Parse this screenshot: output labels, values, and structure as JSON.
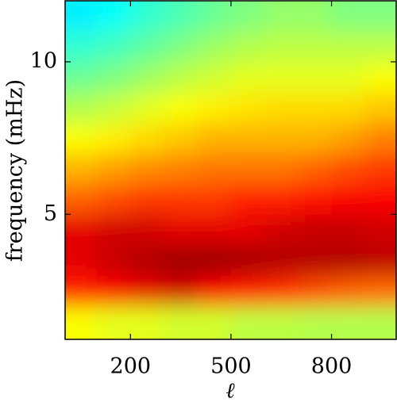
{
  "chart_data": {
    "type": "heatmap",
    "x_label": "ℓ",
    "y_label": "frequency (mHz)",
    "x": [
      50,
      150,
      250,
      350,
      450,
      550,
      650,
      750,
      850,
      950
    ],
    "y": [
      1.5,
      2.5,
      3.5,
      4.5,
      5.5,
      6.5,
      7.5,
      8.5,
      9.5,
      10.5,
      11.5
    ],
    "z": [
      [
        0.62,
        0.6,
        0.6,
        0.58,
        0.58,
        0.56,
        0.56,
        0.55,
        0.55,
        0.55
      ],
      [
        0.85,
        0.88,
        0.9,
        0.92,
        0.88,
        0.85,
        0.83,
        0.8,
        0.78,
        0.77
      ],
      [
        0.9,
        0.93,
        0.95,
        0.97,
        0.97,
        0.96,
        0.95,
        0.95,
        0.95,
        0.94
      ],
      [
        0.9,
        0.92,
        0.92,
        0.9,
        0.9,
        0.9,
        0.92,
        0.93,
        0.93,
        0.92
      ],
      [
        0.78,
        0.8,
        0.82,
        0.82,
        0.82,
        0.85,
        0.85,
        0.86,
        0.88,
        0.88
      ],
      [
        0.7,
        0.72,
        0.74,
        0.75,
        0.76,
        0.76,
        0.76,
        0.78,
        0.8,
        0.82
      ],
      [
        0.62,
        0.64,
        0.66,
        0.68,
        0.7,
        0.7,
        0.7,
        0.7,
        0.72,
        0.75
      ],
      [
        0.55,
        0.57,
        0.6,
        0.62,
        0.64,
        0.65,
        0.66,
        0.66,
        0.66,
        0.68
      ],
      [
        0.48,
        0.5,
        0.53,
        0.56,
        0.58,
        0.6,
        0.6,
        0.6,
        0.6,
        0.62
      ],
      [
        0.42,
        0.44,
        0.47,
        0.5,
        0.53,
        0.55,
        0.56,
        0.56,
        0.56,
        0.56
      ],
      [
        0.36,
        0.38,
        0.42,
        0.45,
        0.48,
        0.5,
        0.52,
        0.52,
        0.5,
        0.5
      ]
    ],
    "colormap": "jet",
    "xlim": [
      5,
      993
    ],
    "ylim": [
      0.9,
      12
    ],
    "xticks": [
      200,
      500,
      800
    ],
    "yticks": [
      5,
      10
    ]
  }
}
